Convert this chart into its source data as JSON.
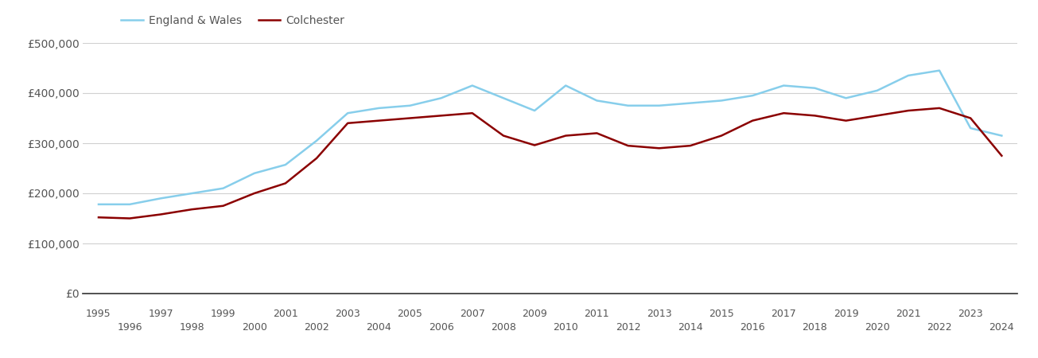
{
  "years": [
    1995,
    1996,
    1997,
    1998,
    1999,
    2000,
    2001,
    2002,
    2003,
    2004,
    2005,
    2006,
    2007,
    2008,
    2009,
    2010,
    2011,
    2012,
    2013,
    2014,
    2015,
    2016,
    2017,
    2018,
    2019,
    2020,
    2021,
    2022,
    2023,
    2024
  ],
  "colchester": [
    152000,
    150000,
    158000,
    168000,
    175000,
    200000,
    220000,
    270000,
    340000,
    345000,
    350000,
    355000,
    360000,
    315000,
    296000,
    315000,
    320000,
    295000,
    290000,
    295000,
    315000,
    345000,
    360000,
    355000,
    345000,
    355000,
    365000,
    370000,
    350000,
    275000
  ],
  "england_wales": [
    178000,
    178000,
    190000,
    200000,
    210000,
    240000,
    257000,
    305000,
    360000,
    370000,
    375000,
    390000,
    415000,
    390000,
    365000,
    415000,
    385000,
    375000,
    375000,
    380000,
    385000,
    395000,
    415000,
    410000,
    390000,
    405000,
    435000,
    445000,
    330000,
    315000
  ],
  "colchester_color": "#8B0000",
  "england_wales_color": "#87CEEB",
  "background_color": "#ffffff",
  "grid_color": "#d0d0d0",
  "ylim": [
    0,
    500000
  ],
  "yticks": [
    0,
    100000,
    200000,
    300000,
    400000,
    500000
  ],
  "ytick_labels": [
    "£0",
    "£100,000",
    "£200,000",
    "£300,000",
    "£400,000",
    "£500,000"
  ],
  "legend_colchester": "Colchester",
  "legend_ew": "England & Wales",
  "line_width": 1.8,
  "xlim": [
    1994.5,
    2024.5
  ]
}
